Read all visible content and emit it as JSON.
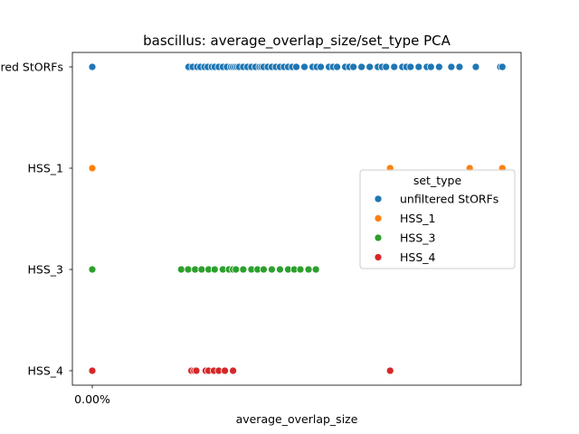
{
  "chart_data": {
    "type": "scatter",
    "title": "bascillus: average_overlap_size/set_type PCA",
    "xlabel": "average_overlap_size",
    "ylabel": "",
    "x_tick_labels": [
      "0.00%"
    ],
    "categories": [
      "unfiltered StORFs",
      "HSS_1",
      "HSS_3",
      "HSS_4"
    ],
    "legend": {
      "title": "set_type",
      "placement": "center-right"
    },
    "grid": false,
    "series": [
      {
        "name": "unfiltered StORFs",
        "color": "#1f77b4",
        "category": "unfiltered StORFs",
        "x": [
          0.0,
          0.236,
          0.246,
          0.257,
          0.265,
          0.275,
          0.283,
          0.293,
          0.3,
          0.31,
          0.32,
          0.33,
          0.34,
          0.345,
          0.35,
          0.355,
          0.36,
          0.37,
          0.38,
          0.39,
          0.4,
          0.41,
          0.415,
          0.42,
          0.43,
          0.44,
          0.45,
          0.46,
          0.47,
          0.48,
          0.49,
          0.5,
          0.52,
          0.54,
          0.55,
          0.56,
          0.58,
          0.59,
          0.6,
          0.62,
          0.63,
          0.64,
          0.66,
          0.68,
          0.7,
          0.71,
          0.72,
          0.74,
          0.76,
          0.77,
          0.78,
          0.8,
          0.82,
          0.83,
          0.85,
          0.88,
          0.9,
          0.94,
          1.0,
          1.005
        ]
      },
      {
        "name": "HSS_1",
        "color": "#ff7f0e",
        "category": "HSS_1",
        "x": [
          0.0,
          0.73,
          0.925,
          1.005
        ]
      },
      {
        "name": "HSS_3",
        "color": "#2ca02c",
        "category": "HSS_3",
        "x": [
          0.0,
          0.218,
          0.235,
          0.252,
          0.268,
          0.285,
          0.3,
          0.32,
          0.335,
          0.345,
          0.352,
          0.37,
          0.39,
          0.405,
          0.42,
          0.44,
          0.46,
          0.48,
          0.495,
          0.51,
          0.53,
          0.548
        ]
      },
      {
        "name": "HSS_4",
        "color": "#d62728",
        "category": "HSS_4",
        "x": [
          0.0,
          0.243,
          0.25,
          0.255,
          0.278,
          0.285,
          0.298,
          0.31,
          0.325,
          0.345,
          0.73
        ]
      }
    ]
  }
}
